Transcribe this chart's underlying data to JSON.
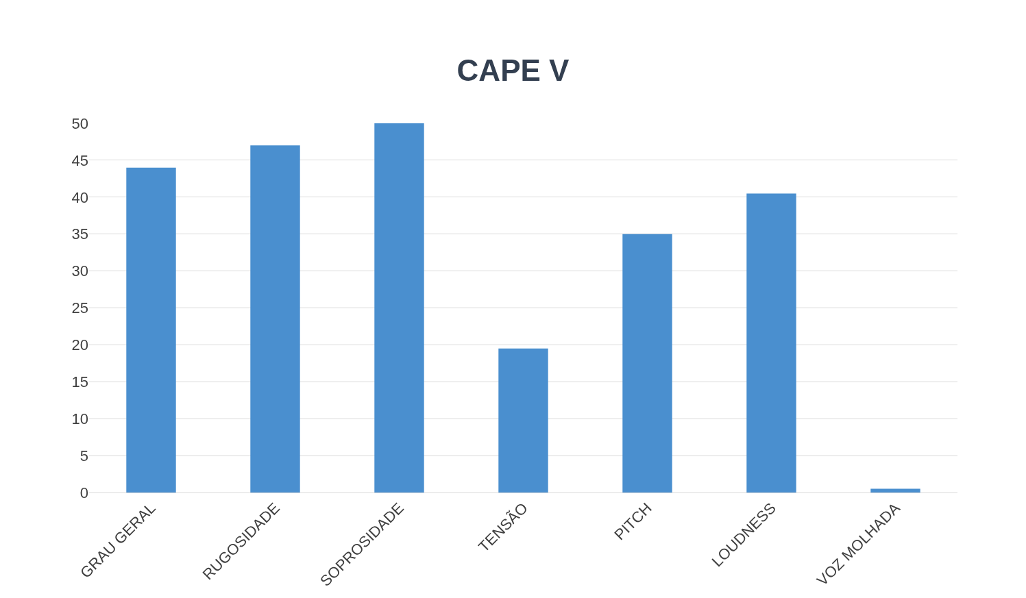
{
  "chart_data": {
    "type": "bar",
    "title": "CAPE V",
    "categories": [
      "GRAU GERAL",
      "RUGOSIDADE",
      "SOPROSIDADE",
      "TENSÃO",
      "PITCH",
      "LOUDNESS",
      "VOZ MOLHADA"
    ],
    "values": [
      44,
      47,
      50,
      19.5,
      35,
      40.5,
      0.5
    ],
    "color": "#4a8fcf",
    "ylim": [
      0,
      50
    ],
    "yticks": [
      0,
      5,
      10,
      15,
      20,
      25,
      30,
      35,
      40,
      45,
      50
    ],
    "grid": "y",
    "legend": false
  }
}
